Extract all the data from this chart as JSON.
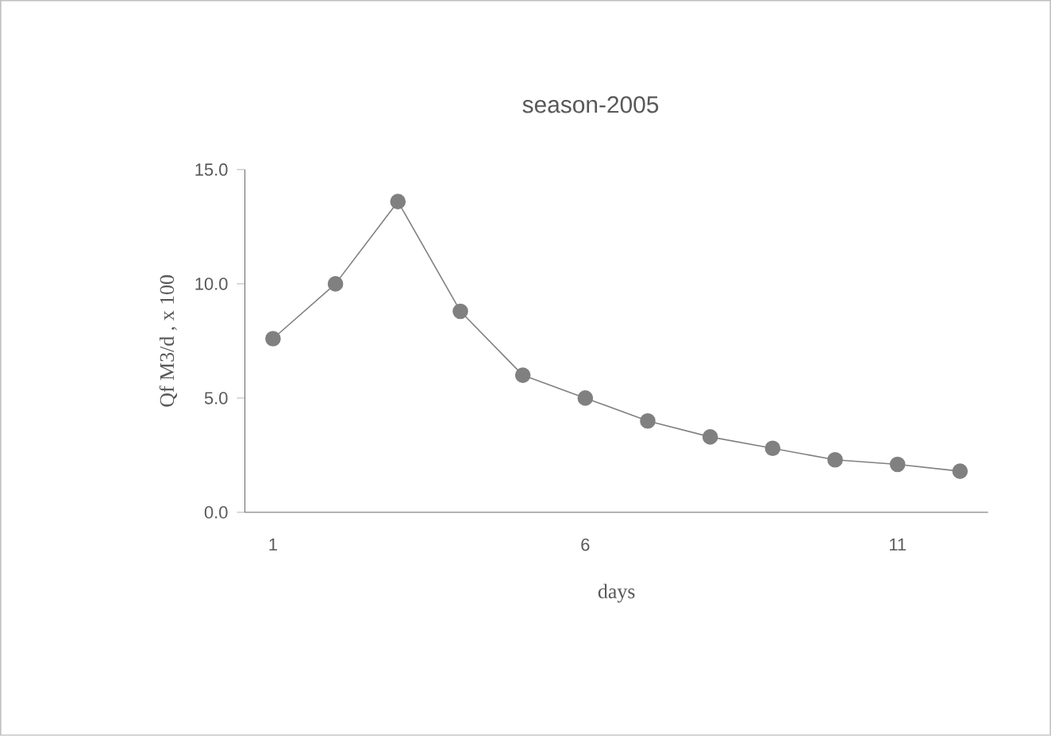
{
  "chart_data": {
    "type": "line",
    "title": "season-2005",
    "xlabel": "days",
    "ylabel": "Qf M3/d , x 100",
    "categories": [
      "1",
      null,
      null,
      null,
      null,
      "6",
      null,
      null,
      null,
      null,
      "11",
      null
    ],
    "series": [
      {
        "color": "#808080",
        "values": [
          7.6,
          10.0,
          13.6,
          8.8,
          6.0,
          5.0,
          4.0,
          3.3,
          2.8,
          2.3,
          2.1,
          1.8
        ]
      }
    ],
    "ylim": [
      0,
      15
    ],
    "yticks": [
      {
        "value": 0,
        "label": "0.0"
      },
      {
        "value": 5,
        "label": "5.0"
      },
      {
        "value": 10,
        "label": "10.0"
      },
      {
        "value": 15,
        "label": "15.0"
      }
    ],
    "grid": false,
    "marker": "circle",
    "line_style": "solid"
  }
}
